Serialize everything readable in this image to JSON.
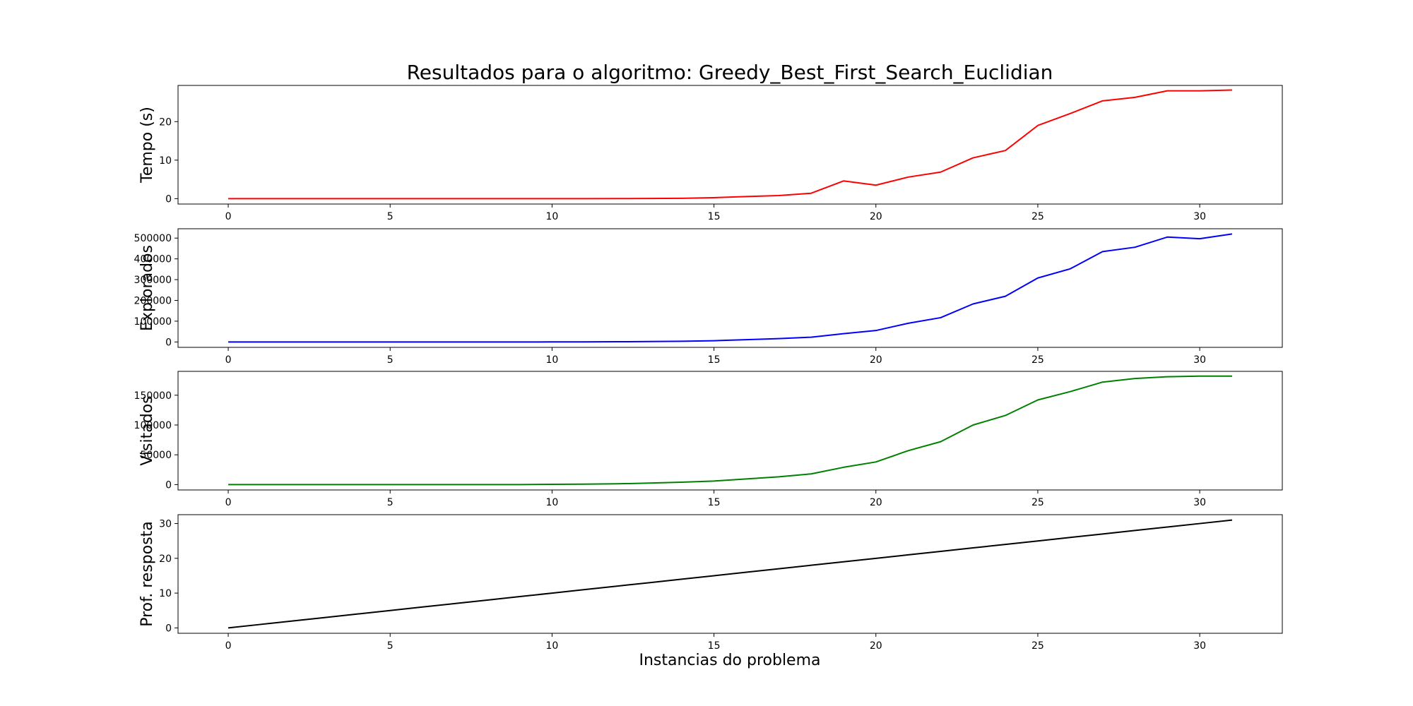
{
  "title": "Resultados para o algoritmo: Greedy_Best_First_Search_Euclidian",
  "xlabel": "Instancias do problema",
  "chart_data": [
    {
      "type": "line",
      "ylabel": "Tempo (s)",
      "color": "#ff0000",
      "xlim": [
        -1.55,
        32.55
      ],
      "ylim": [
        -1.4,
        29.4
      ],
      "xticks": [
        0,
        5,
        10,
        15,
        20,
        25,
        30
      ],
      "yticks": [
        0,
        10,
        20
      ],
      "x": [
        0,
        1,
        2,
        3,
        4,
        5,
        6,
        7,
        8,
        9,
        10,
        11,
        12,
        13,
        14,
        15,
        16,
        17,
        18,
        19,
        20,
        21,
        22,
        23,
        24,
        25,
        26,
        27,
        28,
        29,
        30,
        31
      ],
      "y": [
        0,
        0,
        0,
        0,
        0,
        0,
        0,
        0,
        0,
        0,
        0,
        0,
        0.02,
        0.05,
        0.1,
        0.25,
        0.55,
        0.8,
        1.4,
        4.6,
        3.5,
        5.6,
        6.9,
        10.6,
        12.5,
        19,
        22.1,
        25.4,
        26.3,
        28,
        28,
        28.2
      ]
    },
    {
      "type": "line",
      "ylabel": "Explorados",
      "color": "#0000ff",
      "xlim": [
        -1.55,
        32.55
      ],
      "ylim": [
        -26000,
        545000
      ],
      "xticks": [
        0,
        5,
        10,
        15,
        20,
        25,
        30
      ],
      "yticks": [
        0,
        100000,
        200000,
        300000,
        400000,
        500000
      ],
      "x": [
        0,
        1,
        2,
        3,
        4,
        5,
        6,
        7,
        8,
        9,
        10,
        11,
        12,
        13,
        14,
        15,
        16,
        17,
        18,
        19,
        20,
        21,
        22,
        23,
        24,
        25,
        26,
        27,
        28,
        29,
        30,
        31
      ],
      "y": [
        0,
        0,
        0,
        0,
        0,
        0,
        0,
        0,
        0,
        0,
        200,
        500,
        1000,
        2000,
        3500,
        6000,
        11000,
        16000,
        23000,
        40000,
        55000,
        90000,
        117000,
        183000,
        220000,
        308000,
        352000,
        435000,
        456000,
        505000,
        497000,
        520000
      ]
    },
    {
      "type": "line",
      "ylabel": "Visitados",
      "color": "#008000",
      "xlim": [
        -1.55,
        32.55
      ],
      "ylim": [
        -9000,
        190000
      ],
      "xticks": [
        0,
        5,
        10,
        15,
        20,
        25,
        30
      ],
      "yticks": [
        0,
        50000,
        100000,
        150000
      ],
      "x": [
        0,
        1,
        2,
        3,
        4,
        5,
        6,
        7,
        8,
        9,
        10,
        11,
        12,
        13,
        14,
        15,
        16,
        17,
        18,
        19,
        20,
        21,
        22,
        23,
        24,
        25,
        26,
        27,
        28,
        29,
        30,
        31
      ],
      "y": [
        0,
        0,
        0,
        0,
        0,
        0,
        0,
        0,
        0,
        0,
        500,
        800,
        1300,
        2500,
        4000,
        6000,
        9500,
        13000,
        18000,
        29000,
        38000,
        57000,
        72000,
        100000,
        116000,
        142000,
        156000,
        172000,
        178000,
        181000,
        182000,
        182000
      ]
    },
    {
      "type": "line",
      "ylabel": "Prof. resposta",
      "color": "#000000",
      "xlim": [
        -1.55,
        32.55
      ],
      "ylim": [
        -1.55,
        32.55
      ],
      "xticks": [
        0,
        5,
        10,
        15,
        20,
        25,
        30
      ],
      "yticks": [
        0,
        10,
        20,
        30
      ],
      "x": [
        0,
        1,
        2,
        3,
        4,
        5,
        6,
        7,
        8,
        9,
        10,
        11,
        12,
        13,
        14,
        15,
        16,
        17,
        18,
        19,
        20,
        21,
        22,
        23,
        24,
        25,
        26,
        27,
        28,
        29,
        30,
        31
      ],
      "y": [
        0,
        1,
        2,
        3,
        4,
        5,
        6,
        7,
        8,
        9,
        10,
        11,
        12,
        13,
        14,
        15,
        16,
        17,
        18,
        19,
        20,
        21,
        22,
        23,
        24,
        25,
        26,
        27,
        28,
        29,
        30,
        31
      ]
    }
  ]
}
